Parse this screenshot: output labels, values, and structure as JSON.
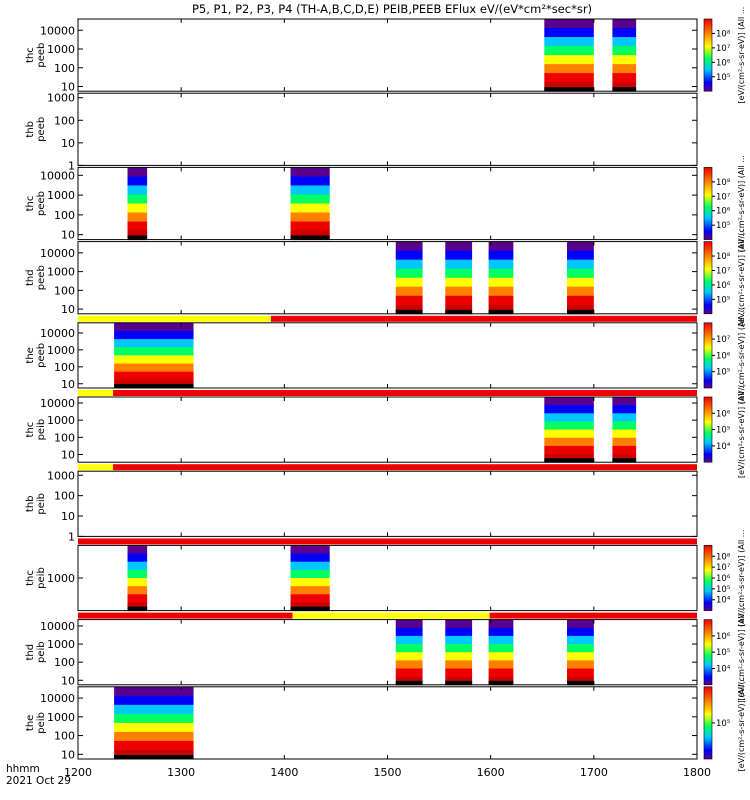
{
  "chart_data": {
    "type": "heatmap",
    "title": "P5, P1, P2, P3, P4 (TH-A,B,C,D,E) PEIB,PEEB EFlux eV/(eV*cm²*sec*sr)",
    "x_axis": {
      "range": [
        1200,
        1800
      ],
      "ticks": [
        "1200",
        "1300",
        "1400",
        "1500",
        "1600",
        "1700",
        "1800"
      ],
      "label_line1": "hhmm",
      "label_line2": "2021 Oct 29"
    },
    "panels": [
      {
        "name": "thc peeb",
        "ylabel_top": "thc",
        "ylabel_bot": "peeb",
        "yticks": [
          "10",
          "100",
          "1000",
          "10000"
        ],
        "ylog_range": [
          0.75,
          4.6
        ],
        "cbar_ticks": [
          "10⁵",
          "10⁶",
          "10⁷",
          "10⁸"
        ],
        "cbar_label": "[eV/(cm²-s-sr-eV)] (All ...",
        "intervals": [
          [
            1652,
            1700
          ],
          [
            1718,
            1741
          ]
        ],
        "mode_bar": null
      },
      {
        "name": "thb peeb",
        "ylabel_top": "thb",
        "ylabel_bot": "peeb",
        "yticks": [
          "1",
          "10",
          "100",
          "1000"
        ],
        "ylog_range": [
          0,
          3.2
        ],
        "cbar_ticks": [],
        "cbar_label": "",
        "intervals": [],
        "mode_bar": null
      },
      {
        "name": "thc peeb",
        "ylabel_top": "thc",
        "ylabel_bot": "peeb",
        "yticks": [
          "10",
          "100",
          "1000",
          "10000"
        ],
        "ylog_range": [
          0.75,
          4.4
        ],
        "cbar_ticks": [
          "10⁵",
          "10⁶",
          "10⁷",
          "10⁸"
        ],
        "cbar_label": "[eV/(cm²-s-sr-eV)] (All ...",
        "intervals": [
          [
            1248,
            1267
          ],
          [
            1406,
            1444
          ]
        ],
        "mode_bar": null
      },
      {
        "name": "thd peeb",
        "ylabel_top": "thd",
        "ylabel_bot": "peeb",
        "yticks": [
          "10",
          "100",
          "1000",
          "10000"
        ],
        "ylog_range": [
          0.75,
          4.6
        ],
        "cbar_ticks": [
          "10⁵",
          "10⁶",
          "10⁷",
          "10⁸"
        ],
        "cbar_label": "[eV/(cm²-s-sr-eV)] (All ...",
        "intervals": [
          [
            1508,
            1534
          ],
          [
            1556,
            1582
          ],
          [
            1598,
            1622
          ],
          [
            1674,
            1700
          ]
        ],
        "mode_bar": null
      },
      {
        "name": "the peeb",
        "ylabel_top": "the",
        "ylabel_bot": "peeb",
        "yticks": [
          "10",
          "100",
          "1000",
          "10000"
        ],
        "ylog_range": [
          0.75,
          4.6
        ],
        "cbar_ticks": [
          "10⁵",
          "10⁶",
          "10⁷"
        ],
        "cbar_label": "[eV/(cm²-s-sr-eV)] (All ...",
        "intervals": [
          [
            1235,
            1312
          ]
        ],
        "mode_bar": [
          {
            "from": 1200,
            "to": 1387,
            "color": "#ffff00"
          },
          {
            "from": 1387,
            "to": 1800,
            "color": "#ee0000"
          }
        ]
      },
      {
        "name": "thc peib",
        "ylabel_top": "thc",
        "ylabel_bot": "peib",
        "yticks": [
          "10",
          "100",
          "1000",
          "10000"
        ],
        "ylog_range": [
          0.55,
          4.35
        ],
        "cbar_ticks": [
          "10⁴",
          "10⁵",
          "10⁶"
        ],
        "cbar_label": "[eV/(cm²-s-sr-eV)] (All ...",
        "intervals": [
          [
            1652,
            1700
          ],
          [
            1718,
            1741
          ]
        ],
        "mode_bar": [
          {
            "from": 1200,
            "to": 1234,
            "color": "#ffff00"
          },
          {
            "from": 1234,
            "to": 1800,
            "color": "#ee0000"
          }
        ]
      },
      {
        "name": "thb peib",
        "ylabel_top": "thb",
        "ylabel_bot": "peib",
        "yticks": [
          "1",
          "10",
          "100",
          "1000"
        ],
        "ylog_range": [
          0,
          3.2
        ],
        "cbar_ticks": [],
        "cbar_label": "",
        "intervals": [],
        "mode_bar": [
          {
            "from": 1200,
            "to": 1234,
            "color": "#ffff00"
          },
          {
            "from": 1234,
            "to": 1800,
            "color": "#ee0000"
          }
        ]
      },
      {
        "name": "thc peib",
        "ylabel_top": "thc",
        "ylabel_bot": "peib",
        "yticks": [
          "1000"
        ],
        "ylog_range": [
          2.0,
          4.0
        ],
        "cbar_ticks": [
          "10⁴",
          "10⁵",
          "10⁶",
          "10⁷",
          "10⁸"
        ],
        "cbar_label": "[eV/(cm²-s-sr-eV)] (All ...",
        "intervals": [
          [
            1248,
            1267
          ],
          [
            1406,
            1444
          ]
        ],
        "mode_bar": [
          {
            "from": 1200,
            "to": 1800,
            "color": "#ee0000"
          }
        ]
      },
      {
        "name": "thd peib",
        "ylabel_top": "thd",
        "ylabel_bot": "peib",
        "yticks": [
          "10",
          "100",
          "1000",
          "10000"
        ],
        "ylog_range": [
          0.75,
          4.35
        ],
        "cbar_ticks": [
          "10⁴",
          "10⁵",
          "10⁶"
        ],
        "cbar_label": "[eV/(cm²-s-sr-eV)] (All ...",
        "intervals": [
          [
            1508,
            1534
          ],
          [
            1556,
            1582
          ],
          [
            1598,
            1622
          ],
          [
            1674,
            1700
          ]
        ],
        "mode_bar": [
          {
            "from": 1200,
            "to": 1408,
            "color": "#ee0000"
          },
          {
            "from": 1408,
            "to": 1599,
            "color": "#ffff00"
          },
          {
            "from": 1599,
            "to": 1800,
            "color": "#ee0000"
          }
        ]
      },
      {
        "name": "the peib",
        "ylabel_top": "the",
        "ylabel_bot": "peib",
        "yticks": [
          "10",
          "100",
          "1000",
          "10000"
        ],
        "ylog_range": [
          0.75,
          4.6
        ],
        "cbar_ticks": [
          "10⁵"
        ],
        "cbar_label": "[eV/(cm²-s-sr-eV)] (All ...",
        "intervals": [
          [
            1235,
            1312
          ]
        ],
        "mode_bar": null
      }
    ]
  }
}
